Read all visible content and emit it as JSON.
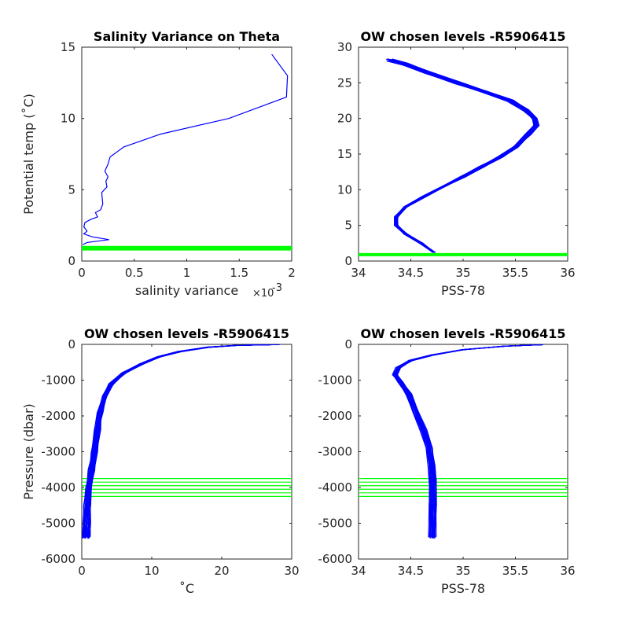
{
  "chart_data": [
    {
      "type": "line",
      "title": "Salinity Variance on Theta",
      "xlabel": "salinity variance",
      "x_exponent_label": "×10",
      "x_exponent": "-3",
      "ylabel": "Potential temp (˚C)",
      "xlim": [
        0,
        2
      ],
      "ylim": [
        0,
        15
      ],
      "xticks": [
        "0",
        "0.5",
        "1",
        "1.5",
        "2"
      ],
      "yticks": [
        "0",
        "5",
        "10",
        "15"
      ],
      "series": [
        {
          "color": "#0000ff",
          "points": [
            [
              1.81,
              14.5
            ],
            [
              1.96,
              13.0
            ],
            [
              1.95,
              11.5
            ],
            [
              1.4,
              10.0
            ],
            [
              0.75,
              8.9
            ],
            [
              0.4,
              8.0
            ],
            [
              0.27,
              7.3
            ],
            [
              0.25,
              6.8
            ],
            [
              0.22,
              6.3
            ],
            [
              0.25,
              5.9
            ],
            [
              0.23,
              5.6
            ],
            [
              0.24,
              5.2
            ],
            [
              0.19,
              4.8
            ],
            [
              0.2,
              4.0
            ],
            [
              0.18,
              3.6
            ],
            [
              0.13,
              3.4
            ],
            [
              0.15,
              3.1
            ],
            [
              0.08,
              2.9
            ],
            [
              0.03,
              2.7
            ],
            [
              0.02,
              2.4
            ],
            [
              0.05,
              2.1
            ],
            [
              0.02,
              1.9
            ],
            [
              0.1,
              1.7
            ],
            [
              0.26,
              1.5
            ],
            [
              0.05,
              1.3
            ],
            [
              0.01,
              1.15
            ]
          ]
        }
      ],
      "hlines": {
        "color": "#00ff00",
        "values": [
          0.8,
          0.85,
          0.9,
          0.95,
          1.0
        ]
      }
    },
    {
      "type": "line",
      "title": "OW chosen levels -R5906415",
      "xlabel": "PSS-78",
      "ylabel": "",
      "xlim": [
        34,
        36
      ],
      "ylim": [
        0,
        30
      ],
      "xticks": [
        "34",
        "34.5",
        "35",
        "35.5",
        "36"
      ],
      "yticks": [
        "0",
        "5",
        "10",
        "15",
        "20",
        "25",
        "30"
      ],
      "profile_count": 40,
      "series": [
        {
          "color": "#0000ff",
          "points": [
            [
              34.72,
              1.2
            ],
            [
              34.6,
              2.5
            ],
            [
              34.45,
              3.8
            ],
            [
              34.36,
              5.0
            ],
            [
              34.36,
              6.2
            ],
            [
              34.45,
              7.6
            ],
            [
              34.62,
              9.0
            ],
            [
              34.82,
              10.5
            ],
            [
              35.0,
              11.8
            ],
            [
              35.18,
              13.2
            ],
            [
              35.36,
              14.6
            ],
            [
              35.5,
              16.0
            ],
            [
              35.63,
              17.8
            ],
            [
              35.7,
              19.0
            ],
            [
              35.68,
              20.0
            ],
            [
              35.6,
              21.2
            ],
            [
              35.45,
              22.5
            ],
            [
              35.2,
              23.8
            ],
            [
              34.95,
              25.0
            ],
            [
              34.65,
              26.5
            ],
            [
              34.45,
              27.6
            ],
            [
              34.3,
              28.2
            ]
          ]
        }
      ],
      "hlines": {
        "color": "#00ff00",
        "values": [
          0.8,
          0.85,
          0.9,
          0.95,
          1.0
        ]
      }
    },
    {
      "type": "line",
      "title": "OW chosen levels -R5906415",
      "xlabel": "˚C",
      "ylabel": "Pressure (dbar)",
      "xlim": [
        0,
        30
      ],
      "ylim": [
        -6000,
        0
      ],
      "xticks": [
        "0",
        "10",
        "20",
        "30"
      ],
      "yticks": [
        "-6000",
        "-5000",
        "-4000",
        "-3000",
        "-2000",
        "-1000",
        "0"
      ],
      "profile_count": 40,
      "series": [
        {
          "color": "#0000ff",
          "points": [
            [
              28.2,
              0
            ],
            [
              27,
              -10
            ],
            [
              22,
              -30
            ],
            [
              18,
              -80
            ],
            [
              14,
              -200
            ],
            [
              11,
              -350
            ],
            [
              8.5,
              -550
            ],
            [
              6,
              -800
            ],
            [
              4.2,
              -1100
            ],
            [
              3.2,
              -1450
            ],
            [
              2.6,
              -1900
            ],
            [
              2.2,
              -2400
            ],
            [
              1.8,
              -3000
            ],
            [
              1.4,
              -3500
            ],
            [
              1.0,
              -4000
            ],
            [
              0.8,
              -4500
            ],
            [
              0.7,
              -5000
            ],
            [
              0.65,
              -5400
            ]
          ]
        }
      ],
      "hlines": {
        "color": "#00ff00",
        "values": [
          -3750,
          -3850,
          -3950,
          -4050,
          -4150,
          -4250
        ]
      }
    },
    {
      "type": "line",
      "title": "OW chosen levels -R5906415",
      "xlabel": "PSS-78",
      "ylabel": "",
      "xlim": [
        34,
        36
      ],
      "ylim": [
        -6000,
        0
      ],
      "xticks": [
        "34",
        "34.5",
        "35",
        "35.5",
        "36"
      ],
      "yticks": [
        "-6000",
        "-5000",
        "-4000",
        "-3000",
        "-2000",
        "-1000",
        "0"
      ],
      "profile_count": 40,
      "series": [
        {
          "color": "#0000ff",
          "points": [
            [
              35.75,
              -10
            ],
            [
              35.4,
              -50
            ],
            [
              35.0,
              -150
            ],
            [
              34.7,
              -300
            ],
            [
              34.5,
              -450
            ],
            [
              34.38,
              -650
            ],
            [
              34.35,
              -850
            ],
            [
              34.4,
              -1050
            ],
            [
              34.48,
              -1400
            ],
            [
              34.55,
              -1900
            ],
            [
              34.62,
              -2400
            ],
            [
              34.68,
              -2900
            ],
            [
              34.7,
              -3400
            ],
            [
              34.71,
              -3800
            ],
            [
              34.71,
              -4500
            ],
            [
              34.71,
              -5400
            ]
          ]
        }
      ],
      "hlines": {
        "color": "#00ff00",
        "values": [
          -3750,
          -3850,
          -3950,
          -4050,
          -4150,
          -4250
        ]
      }
    }
  ]
}
